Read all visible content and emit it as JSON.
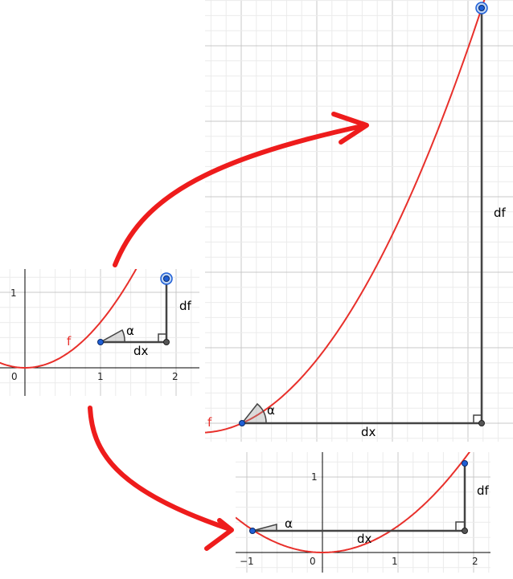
{
  "diagram": {
    "colors": {
      "curve": "#e8302b",
      "arrow": "#ee1c1c",
      "leg": "#444444",
      "point": "#1f5fd6",
      "grid_major": "#c8c8c8",
      "grid_minor": "#ebebeb",
      "axis": "#000000"
    },
    "small_panel": {
      "function_label": "f",
      "alpha_label": "α",
      "dx_label": "dx",
      "df_label": "df",
      "x_ticks": [
        "0",
        "1",
        "2"
      ],
      "y_ticks": [
        "1"
      ]
    },
    "zoom_panel": {
      "function_label": "f",
      "alpha_label": "α",
      "dx_label": "dx",
      "df_label": "df"
    },
    "shift_panel": {
      "alpha_label": "α",
      "dx_label": "dx",
      "df_label": "df",
      "x_ticks": [
        "−1",
        "0",
        "1",
        "2"
      ],
      "y_ticks": [
        "1"
      ]
    },
    "arrows": [
      "curved-arrow-to-zoom",
      "curved-arrow-to-shift"
    ]
  }
}
